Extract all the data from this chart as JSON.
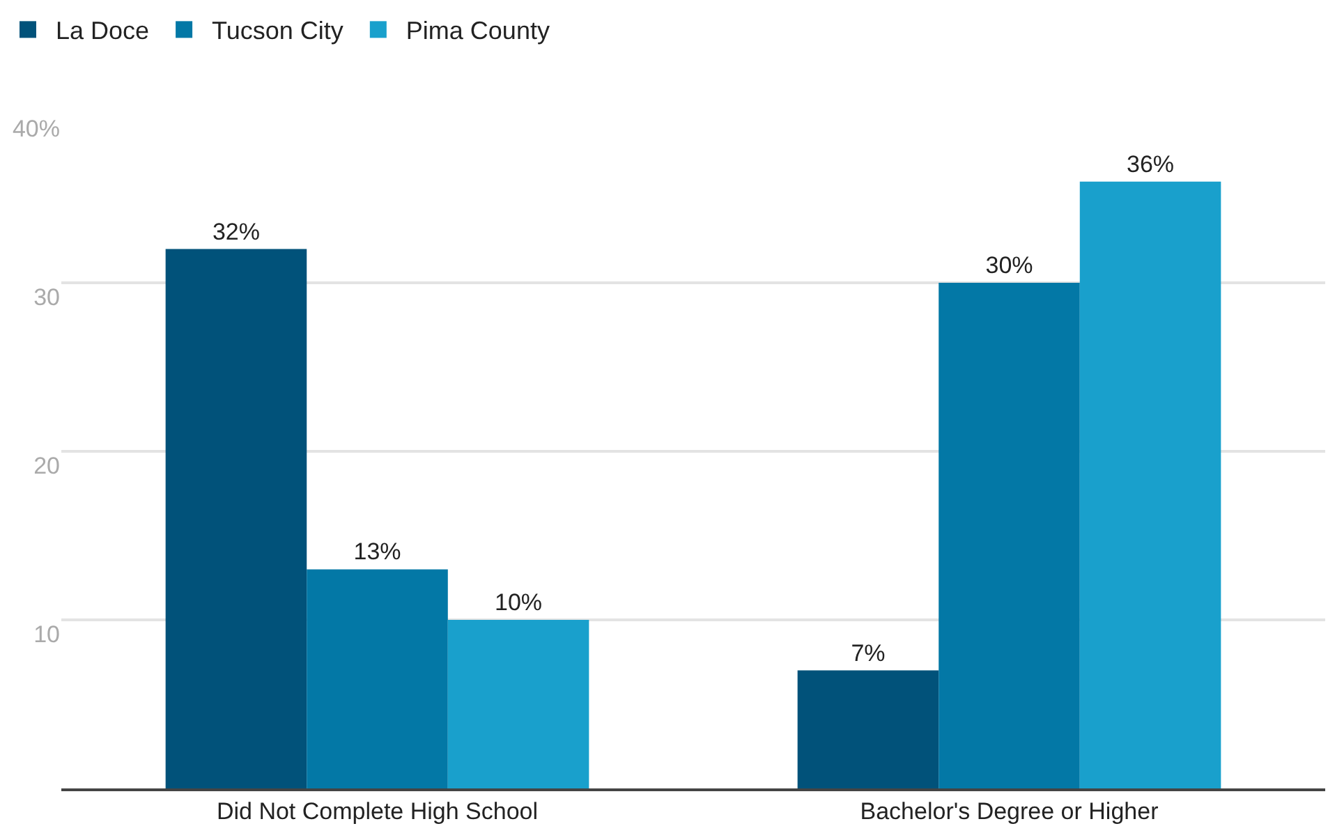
{
  "chart_data": {
    "type": "bar",
    "categories": [
      "Did Not Complete High School",
      "Bachelor's Degree or Higher"
    ],
    "series": [
      {
        "name": "La Doce",
        "color": "#01527a",
        "values": [
          32,
          7
        ],
        "value_labels": [
          "32%",
          "7%"
        ]
      },
      {
        "name": "Tucson City",
        "color": "#0378a6",
        "values": [
          13,
          30
        ],
        "value_labels": [
          "13%",
          "30%"
        ]
      },
      {
        "name": "Pima County",
        "color": "#19a0cc",
        "values": [
          10,
          36
        ],
        "value_labels": [
          "10%",
          "36%"
        ]
      }
    ],
    "ylim": [
      0,
      40
    ],
    "yticks": [
      10,
      20,
      30,
      {
        "value": 40,
        "label": "40%"
      }
    ],
    "grid": "y",
    "legend": "top left"
  }
}
